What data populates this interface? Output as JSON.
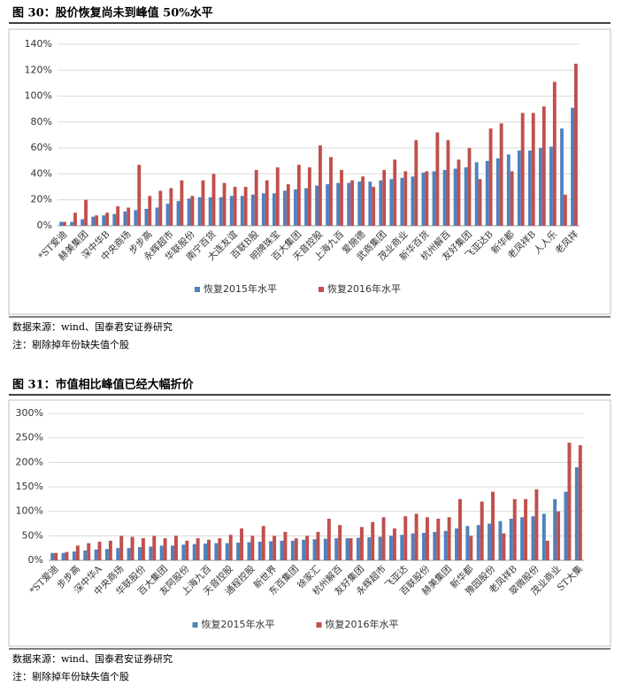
{
  "chart_data": [
    {
      "type": "bar",
      "title": "图 30：股价恢复尚未到峰值 50%水平",
      "categories": [
        "*ST爱迪",
        null,
        "赫美集团",
        null,
        "深中华B",
        null,
        "中央商场",
        null,
        "步步高",
        null,
        "永辉超市",
        null,
        "华联股份",
        null,
        "南宁百货",
        null,
        "大连友谊",
        null,
        "百联B股",
        null,
        "明牌珠宝",
        null,
        "百大集团",
        null,
        "天音控股",
        null,
        "上海九百",
        null,
        "爱施德",
        null,
        "武商集团",
        null,
        "茂业商业",
        null,
        "新华百货",
        null,
        "杭州解百",
        null,
        "友好集团",
        null,
        "飞亚达B",
        null,
        "新华都",
        null,
        "老凤祥B",
        null,
        "人人乐",
        null,
        "老凤祥"
      ],
      "series": [
        {
          "name": "恢复2015年水平",
          "color": "#4f81bd",
          "values": [
            3,
            3,
            5,
            7,
            8,
            9,
            11,
            12,
            13,
            14,
            17,
            19,
            21,
            22,
            22,
            22,
            23,
            23,
            24,
            25,
            25,
            27,
            28,
            29,
            31,
            32,
            33,
            33,
            34,
            34,
            35,
            36,
            37,
            38,
            41,
            42,
            43,
            44,
            45,
            49,
            50,
            52,
            55,
            58,
            58,
            60,
            61,
            75,
            91
          ]
        },
        {
          "name": "恢复2016年水平",
          "color": "#c0504d",
          "values": [
            3,
            10,
            20,
            8,
            10,
            15,
            14,
            47,
            23,
            27,
            29,
            35,
            23,
            35,
            40,
            33,
            30,
            30,
            43,
            35,
            45,
            32,
            47,
            45,
            62,
            53,
            43,
            35,
            38,
            30,
            43,
            51,
            42,
            66,
            42,
            72,
            66,
            51,
            60,
            36,
            75,
            79,
            42,
            87,
            87,
            92,
            111,
            24,
            125
          ]
        }
      ],
      "ylim": [
        0,
        140
      ],
      "yticks": [
        {
          "value": 0,
          "label": "0%"
        },
        {
          "value": 20,
          "label": "20%"
        },
        {
          "value": 40,
          "label": "40%"
        },
        {
          "value": 60,
          "label": "60%"
        },
        {
          "value": 80,
          "label": "80%"
        },
        {
          "value": 100,
          "label": "100%"
        },
        {
          "value": 120,
          "label": "120%"
        },
        {
          "value": 140,
          "label": "140%"
        }
      ],
      "grid": true,
      "legend": "bottom",
      "source": "数据来源：wind、国泰君安证券研究",
      "note": "注：剔除掉年份缺失值个股"
    },
    {
      "type": "bar",
      "title": "图 31：市值相比峰值已经大幅折价",
      "categories": [
        "*ST爱迪",
        null,
        "步步高",
        null,
        "深中华A",
        null,
        "中央商场",
        null,
        "华联股份",
        null,
        "百大集团",
        null,
        "友阿股份",
        null,
        "上海九百",
        null,
        "天音控股",
        null,
        "通程控股",
        null,
        "新世界",
        null,
        "东百集团",
        null,
        "徐家汇",
        null,
        "杭州解百",
        null,
        "友好集团",
        null,
        "永辉超市",
        null,
        "飞亚达",
        null,
        "百联股份",
        null,
        "赫美集团",
        null,
        "新华都",
        null,
        "豫园股份",
        null,
        "老凤祥B",
        null,
        "翠微股份",
        null,
        "茂业商业",
        null,
        "ST大集"
      ],
      "series": [
        {
          "name": "恢复2015年水平",
          "color": "#4f81bd",
          "values": [
            15,
            15,
            18,
            20,
            22,
            23,
            25,
            25,
            27,
            28,
            30,
            30,
            32,
            33,
            34,
            35,
            35,
            36,
            37,
            38,
            39,
            40,
            40,
            42,
            43,
            44,
            45,
            45,
            46,
            47,
            48,
            50,
            52,
            55,
            56,
            58,
            60,
            65,
            70,
            72,
            75,
            80,
            85,
            88,
            90,
            95,
            125,
            140,
            190
          ]
        },
        {
          "name": "恢复2016年水平",
          "color": "#c0504d",
          "values": [
            15,
            17,
            30,
            35,
            38,
            40,
            50,
            48,
            45,
            50,
            45,
            50,
            40,
            45,
            42,
            45,
            52,
            65,
            50,
            70,
            50,
            58,
            45,
            50,
            58,
            85,
            72,
            45,
            68,
            78,
            88,
            65,
            90,
            95,
            88,
            85,
            88,
            125,
            50,
            120,
            140,
            55,
            125,
            125,
            145,
            40,
            100,
            240,
            235
          ]
        }
      ],
      "ylim": [
        0,
        300
      ],
      "yticks": [
        {
          "value": 0,
          "label": "0%"
        },
        {
          "value": 50,
          "label": "50%"
        },
        {
          "value": 100,
          "label": "100%"
        },
        {
          "value": 150,
          "label": "150%"
        },
        {
          "value": 200,
          "label": "200%"
        },
        {
          "value": 250,
          "label": "250%"
        },
        {
          "value": 300,
          "label": "300%"
        }
      ],
      "grid": true,
      "legend": "bottom",
      "source": "数据来源：wind、国泰君安证券研究",
      "note": "注：剔除掉年份缺失值个股"
    }
  ]
}
